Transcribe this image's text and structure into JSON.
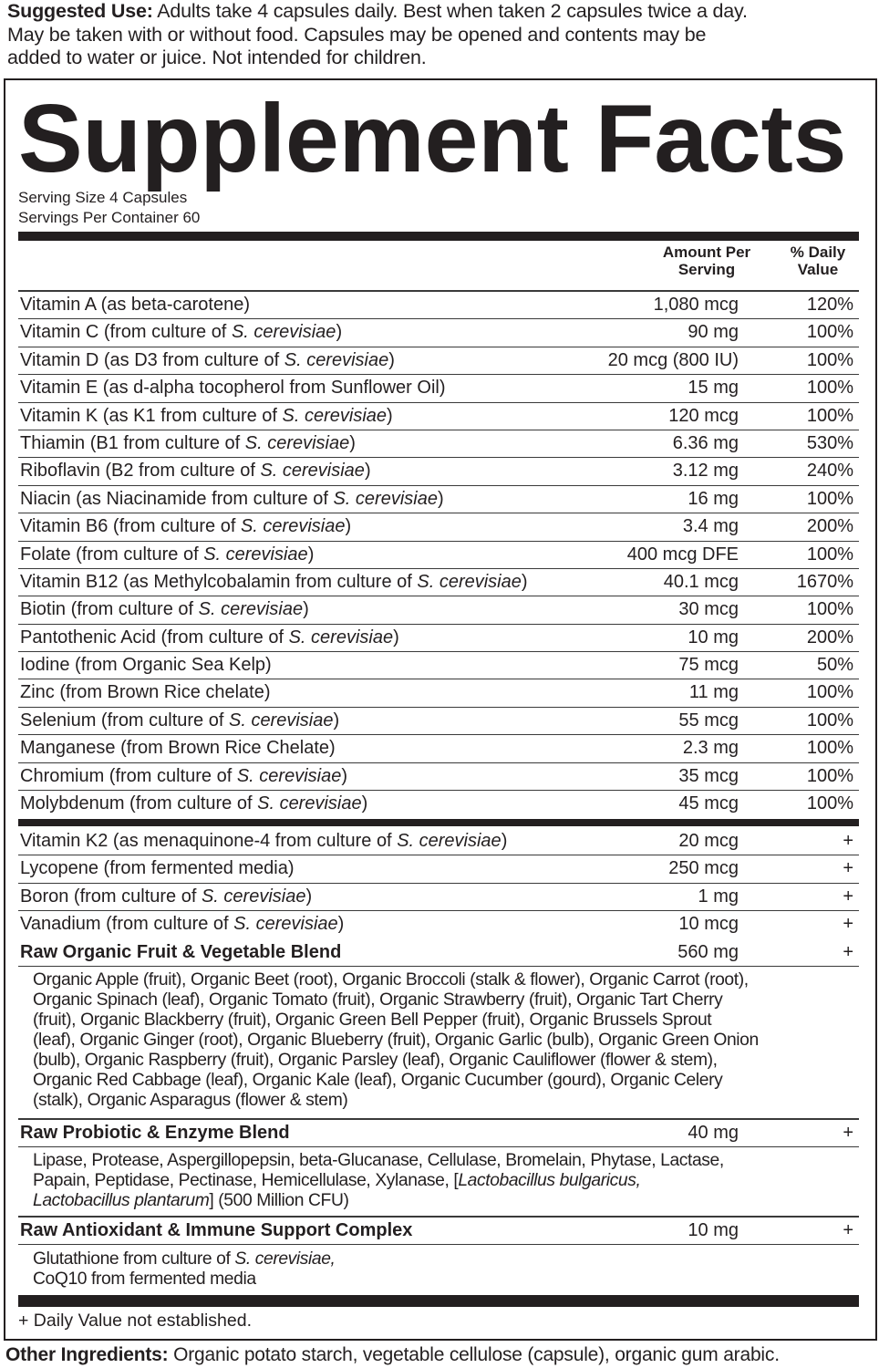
{
  "suggested_use": {
    "label": "Suggested Use:",
    "lines": [
      "Adults take 4 capsules daily. Best when taken 2 capsules twice a day.",
      "May be taken with or without food. Capsules may be opened and contents may be",
      "added to water or juice. Not intended for children."
    ]
  },
  "title": "Supplement Facts",
  "serving_size": "Serving Size 4 Capsules",
  "servings_per_container": "Servings Per Container 60",
  "header": {
    "amount_line1": "Amount Per",
    "amount_line2": "Serving",
    "dv_line1": "% Daily",
    "dv_line2": "Value"
  },
  "nutrients": [
    {
      "pre": "Vitamin A (as beta-carotene)",
      "it": "",
      "post": "",
      "amount": "1,080 mcg",
      "dv": "120%"
    },
    {
      "pre": "Vitamin C (from culture of ",
      "it": "S. cerevisiae",
      "post": ")",
      "amount": "90 mg",
      "dv": "100%"
    },
    {
      "pre": "Vitamin D (as D3 from culture of ",
      "it": "S. cerevisiae",
      "post": ")",
      "amount": "20 mcg (800 IU)",
      "dv": "100%"
    },
    {
      "pre": "Vitamin E (as d-alpha tocopherol from Sunflower Oil)",
      "it": "",
      "post": "",
      "amount": "15 mg",
      "dv": "100%"
    },
    {
      "pre": "Vitamin K (as K1 from culture of ",
      "it": "S. cerevisiae",
      "post": ")",
      "amount": "120 mcg",
      "dv": "100%"
    },
    {
      "pre": "Thiamin (B1 from culture of ",
      "it": "S. cerevisiae",
      "post": ")",
      "amount": "6.36 mg",
      "dv": "530%"
    },
    {
      "pre": "Riboflavin (B2 from culture of ",
      "it": "S. cerevisiae",
      "post": ")",
      "amount": "3.12 mg",
      "dv": "240%"
    },
    {
      "pre": "Niacin (as Niacinamide from culture of ",
      "it": "S. cerevisiae",
      "post": ")",
      "amount": "16 mg",
      "dv": "100%"
    },
    {
      "pre": "Vitamin B6 (from culture of ",
      "it": "S. cerevisiae",
      "post": ")",
      "amount": "3.4 mg",
      "dv": "200%"
    },
    {
      "pre": "Folate (from culture of ",
      "it": "S. cerevisiae",
      "post": ")",
      "amount": "400 mcg DFE",
      "dv": "100%"
    },
    {
      "pre": "Vitamin B12 (as Methylcobalamin from culture of ",
      "it": "S. cerevisiae",
      "post": ")",
      "amount": "40.1 mcg",
      "dv": "1670%"
    },
    {
      "pre": "Biotin (from culture of ",
      "it": "S. cerevisiae",
      "post": ")",
      "amount": "30 mcg",
      "dv": "100%"
    },
    {
      "pre": "Pantothenic Acid (from culture of ",
      "it": "S. cerevisiae",
      "post": ")",
      "amount": "10 mg",
      "dv": "200%"
    },
    {
      "pre": "Iodine (from Organic Sea Kelp)",
      "it": "",
      "post": "",
      "amount": "75 mcg",
      "dv": "50%"
    },
    {
      "pre": "Zinc (from Brown Rice chelate)",
      "it": "",
      "post": "",
      "amount": "11 mg",
      "dv": "100%"
    },
    {
      "pre": "Selenium (from culture of ",
      "it": "S. cerevisiae",
      "post": ")",
      "amount": "55 mcg",
      "dv": "100%"
    },
    {
      "pre": "Manganese (from Brown Rice Chelate)",
      "it": "",
      "post": "",
      "amount": "2.3 mg",
      "dv": "100%"
    },
    {
      "pre": "Chromium (from culture of ",
      "it": "S. cerevisiae",
      "post": ")",
      "amount": "35 mcg",
      "dv": "100%"
    },
    {
      "pre": "Molybdenum (from culture of ",
      "it": "S. cerevisiae",
      "post": ")",
      "amount": "45 mcg",
      "dv": "100%"
    }
  ],
  "other_nutrients": [
    {
      "pre": "Vitamin K2 (as menaquinone-4 from culture of ",
      "it": "S. cerevisiae",
      "post": ")",
      "amount": "20 mcg",
      "dv": "+"
    },
    {
      "pre": "Lycopene (from fermented media)",
      "it": "",
      "post": "",
      "amount": "250 mcg",
      "dv": "+"
    },
    {
      "pre": "Boron (from culture of ",
      "it": "S. cerevisiae",
      "post": ")",
      "amount": "1 mg",
      "dv": "+"
    },
    {
      "pre": "Vanadium (from culture of ",
      "it": "S. cerevisiae",
      "post": ")",
      "amount": "10 mcg",
      "dv": "+"
    }
  ],
  "blends": {
    "fruit_veg": {
      "name": "Raw Organic Fruit & Vegetable Blend",
      "amount": "560 mg",
      "dv": "+",
      "lines": [
        "Organic Apple (fruit), Organic Beet (root), Organic Broccoli (stalk & flower), Organic Carrot (root),",
        "Organic Spinach (leaf), Organic Tomato (fruit), Organic Strawberry (fruit), Organic Tart Cherry",
        "(fruit), Organic Blackberry (fruit), Organic Green Bell Pepper (fruit), Organic Brussels Sprout",
        "(leaf), Organic Ginger (root), Organic Blueberry (fruit), Organic Garlic (bulb), Organic Green Onion",
        "(bulb), Organic Raspberry (fruit), Organic Parsley (leaf), Organic Cauliflower (flower & stem),",
        "Organic Red Cabbage (leaf), Organic Kale (leaf), Organic Cucumber (gourd), Organic Celery",
        "(stalk), Organic Asparagus (flower & stem)"
      ]
    },
    "probiotic": {
      "name": "Raw Probiotic & Enzyme Blend",
      "amount": "40 mg",
      "dv": "+",
      "line1": "Lipase, Protease, Aspergillopepsin, beta-Glucanase, Cellulase, Bromelain, Phytase, Lactase,",
      "line2_pre": "Papain, Peptidase, Pectinase, Hemicellulase, Xylanase, [",
      "line2_it": "Lactobacillus bulgaricus,",
      "line3_it": "Lactobacillus plantarum",
      "line3_post": "] (500 Million CFU)"
    },
    "antioxidant": {
      "name": "Raw Antioxidant & Immune Support Complex",
      "amount": "10 mg",
      "dv": "+",
      "line1_pre": "Glutathione from culture of ",
      "line1_it": "S. cerevisiae,",
      "line2": "CoQ10 from fermented media"
    }
  },
  "footnote": "+ Daily Value not established.",
  "other_ingredients": {
    "label": "Other Ingredients:",
    "text": "Organic potato starch, vegetable cellulose (capsule), organic gum arabic."
  }
}
